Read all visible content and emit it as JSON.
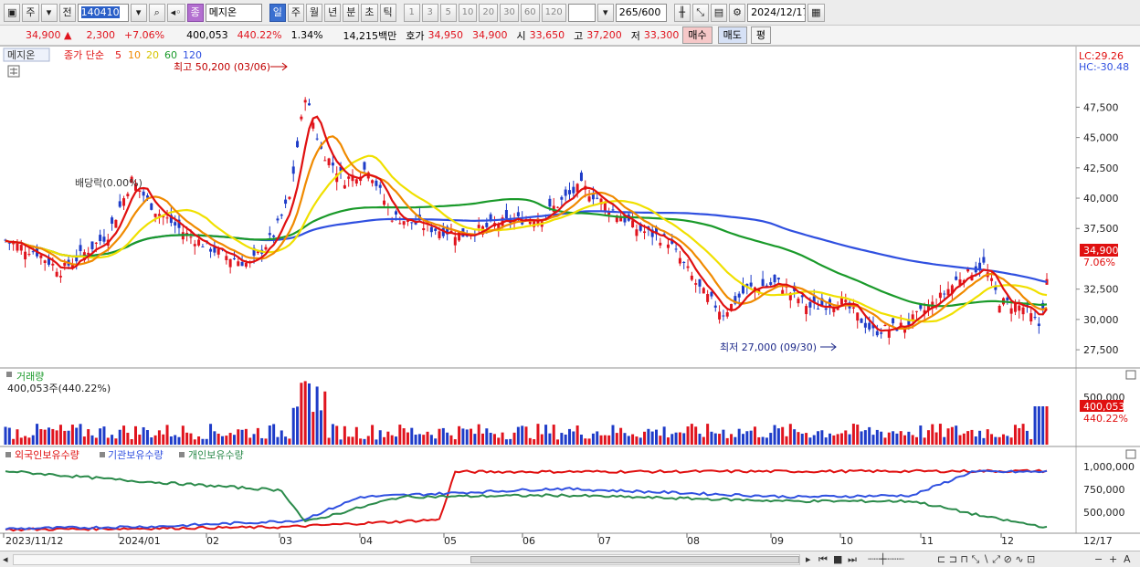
{
  "toolbar": {
    "period": "주",
    "prev_label": "전",
    "code": "140410",
    "name": "메지온",
    "name_badge": "종",
    "intervals": [
      "일",
      "주",
      "월",
      "년",
      "분",
      "초",
      "틱"
    ],
    "active_interval": "일",
    "counts": [
      "1",
      "3",
      "5",
      "10",
      "20",
      "30",
      "60",
      "120"
    ],
    "view_count": "265",
    "view_total": "/600",
    "date": "2024/12/17"
  },
  "quote": {
    "price": "34,900",
    "change": "2,300",
    "change_pct": "+7.06%",
    "volume": "400,053",
    "vol_ratio": "440.22%",
    "turnover": "1.34%",
    "amount": "14,215백만",
    "bid_label": "호가",
    "bid": "34,950",
    "ask": "34,900",
    "open_label": "시",
    "open": "33,650",
    "high_label": "고",
    "high": "37,200",
    "low_label": "저",
    "low": "33,300",
    "buy_label": "매수",
    "sell_label": "매도",
    "avg_label": "평"
  },
  "chart_data": [
    {
      "type": "line",
      "legend": {
        "name": "메지온",
        "label": "종가 단순",
        "periods": [
          "5",
          "10",
          "20",
          "60",
          "120"
        ]
      },
      "colors": {
        "candle_up": "#e0141e",
        "candle_down": "#1e3cc8",
        "ma5": "#e01010",
        "ma10": "#f08a00",
        "ma20": "#f0e000",
        "ma60": "#1a9a2a",
        "ma120": "#3050e0"
      },
      "lc_label": "LC:29.26",
      "hc_label": "HC:-30.48",
      "y_ticks": [
        "47,500",
        "45,000",
        "42,500",
        "40,000",
        "37,500",
        "32,500",
        "30,000",
        "27,500"
      ],
      "ylim": [
        26000,
        52500
      ],
      "price_tag": "34,900",
      "price_tag_pct": "7.06%",
      "annotations": {
        "high": "최고 50,200 (03/06)",
        "low": "최저 27,000 (09/30)",
        "dividend": "배당락(0.00%)"
      }
    },
    {
      "type": "bar",
      "title": "거래량",
      "subtitle": "400,053주(440.22%)",
      "y_ticks": [
        "500,000"
      ],
      "price_tag": "400,053",
      "price_tag_pct": "440.22%"
    },
    {
      "type": "line",
      "series_names": [
        "외국인보유수량",
        "기관보유수량",
        "개인보유수량"
      ],
      "series_colors": [
        "#e01010",
        "#3050e0",
        "#2a8a4a"
      ],
      "y_ticks": [
        "1,000,000",
        "750,000",
        "500,000"
      ],
      "x_tick_labels": [
        "2023/11/12",
        "2024/01",
        "02",
        "03",
        "04",
        "05",
        "06",
        "07",
        "08",
        "09",
        "10",
        "11",
        "12",
        "12/17"
      ]
    }
  ]
}
